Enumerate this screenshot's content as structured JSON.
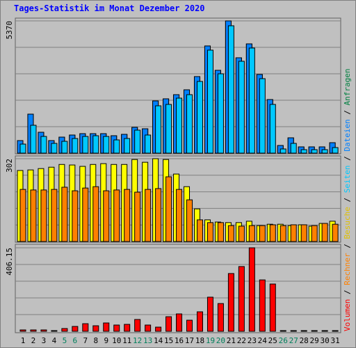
{
  "title": "Tages-Statistik im Monat Dezember 2020",
  "legend_separator": " / ",
  "chart_data": [
    {
      "type": "bar",
      "ylim": [
        0,
        5370
      ],
      "yticks": [
        5370
      ],
      "series": [
        {
          "name": "Anfragen",
          "color": "#008040",
          "values": [
            509,
            1583,
            848,
            509,
            650,
            735,
            791,
            791,
            791,
            707,
            763,
            1046,
            989,
            2120,
            2205,
            2374,
            2572,
            3109,
            4353,
            3363,
            5370,
            3872,
            4437,
            3194,
            2176,
            311,
            622,
            254,
            254,
            254,
            424
          ]
        },
        {
          "name": "Dateien",
          "color": "#0080ff",
          "values": [
            509,
            1583,
            848,
            509,
            650,
            735,
            791,
            791,
            791,
            707,
            763,
            1046,
            989,
            2120,
            2205,
            2374,
            2572,
            3109,
            4353,
            3363,
            5370,
            3872,
            4437,
            3194,
            2176,
            311,
            622,
            254,
            254,
            254,
            424
          ]
        },
        {
          "name": "Seiten",
          "color": "#00c8ff",
          "values": [
            367,
            1131,
            678,
            396,
            480,
            594,
            678,
            707,
            678,
            537,
            594,
            933,
            735,
            1922,
            1978,
            2233,
            2374,
            2911,
            4183,
            3222,
            5172,
            3731,
            4268,
            3024,
            1978,
            170,
            396,
            141,
            141,
            141,
            226
          ]
        }
      ]
    },
    {
      "type": "bar",
      "ylim": [
        0,
        302
      ],
      "yticks": [
        302
      ],
      "series": [
        {
          "name": "Besuche",
          "color": "#ffff00",
          "values": [
            259,
            261,
            266,
            271,
            281,
            279,
            274,
            281,
            284,
            281,
            281,
            299,
            289,
            302,
            299,
            246,
            200,
            119,
            79,
            71,
            69,
            69,
            74,
            58,
            63,
            63,
            58,
            61,
            56,
            66,
            74
          ]
        },
        {
          "name": "Rechner",
          "color": "#ff8000",
          "values": [
            190,
            188,
            188,
            190,
            198,
            185,
            195,
            200,
            185,
            188,
            190,
            180,
            190,
            193,
            236,
            190,
            152,
            79,
            69,
            69,
            58,
            56,
            58,
            58,
            61,
            58,
            61,
            61,
            58,
            66,
            63
          ]
        }
      ]
    },
    {
      "type": "bar",
      "ylim": [
        0,
        406.15
      ],
      "yticks": [
        406.15
      ],
      "categories": [
        "1",
        "2",
        "3",
        "4",
        "5",
        "6",
        "7",
        "8",
        "9",
        "10",
        "11",
        "12",
        "13",
        "14",
        "15",
        "16",
        "17",
        "18",
        "19",
        "20",
        "21",
        "22",
        "23",
        "24",
        "25",
        "26",
        "27",
        "28",
        "29",
        "30",
        "31"
      ],
      "category_colors": [
        "#000000",
        "#000000",
        "#000000",
        "#000000",
        "#00805c",
        "#00805c",
        "#000000",
        "#000000",
        "#000000",
        "#000000",
        "#000000",
        "#00805c",
        "#00805c",
        "#000000",
        "#000000",
        "#000000",
        "#000000",
        "#000000",
        "#00805c",
        "#00805c",
        "#000000",
        "#000000",
        "#000000",
        "#000000",
        "#000000",
        "#00805c",
        "#00805c",
        "#000000",
        "#000000",
        "#000000",
        "#000000"
      ],
      "series": [
        {
          "name": "Volumen",
          "color": "#ff0000",
          "values": [
            6.8,
            6.8,
            6.8,
            3.4,
            13.5,
            23.7,
            37,
            27,
            40.6,
            30.5,
            33.8,
            57.5,
            30.5,
            20.3,
            71,
            84.6,
            54,
            94.8,
            166,
            135,
            281,
            315,
            406.15,
            250,
            230,
            3.4,
            3.4,
            3.4,
            3.4,
            3.4,
            3.4
          ]
        }
      ]
    }
  ]
}
